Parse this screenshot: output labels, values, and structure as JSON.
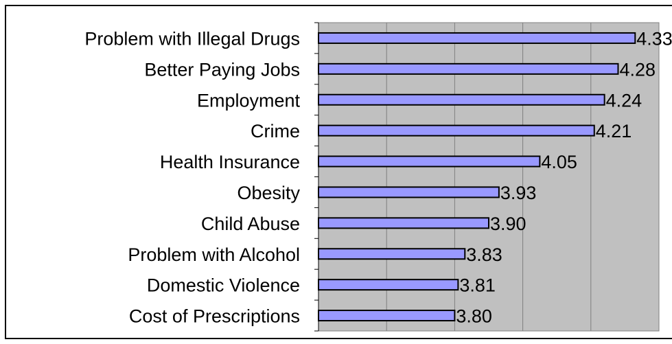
{
  "chart_data": {
    "type": "bar",
    "orientation": "horizontal",
    "categories": [
      "Problem with Illegal Drugs",
      "Better Paying Jobs",
      "Employment",
      "Crime",
      "Health Insurance",
      "Obesity",
      "Child Abuse",
      "Problem with Alcohol",
      "Domestic Violence",
      "Cost of Prescriptions"
    ],
    "values": [
      4.33,
      4.28,
      4.24,
      4.21,
      4.05,
      3.93,
      3.9,
      3.83,
      3.81,
      3.8
    ],
    "value_labels": [
      "4.33",
      "4.28",
      "4.24",
      "4.21",
      "4.05",
      "3.93",
      "3.90",
      "3.83",
      "3.81",
      "3.80"
    ],
    "title": "",
    "xlabel": "",
    "ylabel": "",
    "xlim": [
      3.4,
      4.4
    ],
    "grid": true,
    "legend": "none",
    "colors": {
      "bar_fill": "#9999ff",
      "bar_stroke": "#000000",
      "plot_background": "#c0c0c0",
      "gridline": "#7f7f7f"
    }
  }
}
